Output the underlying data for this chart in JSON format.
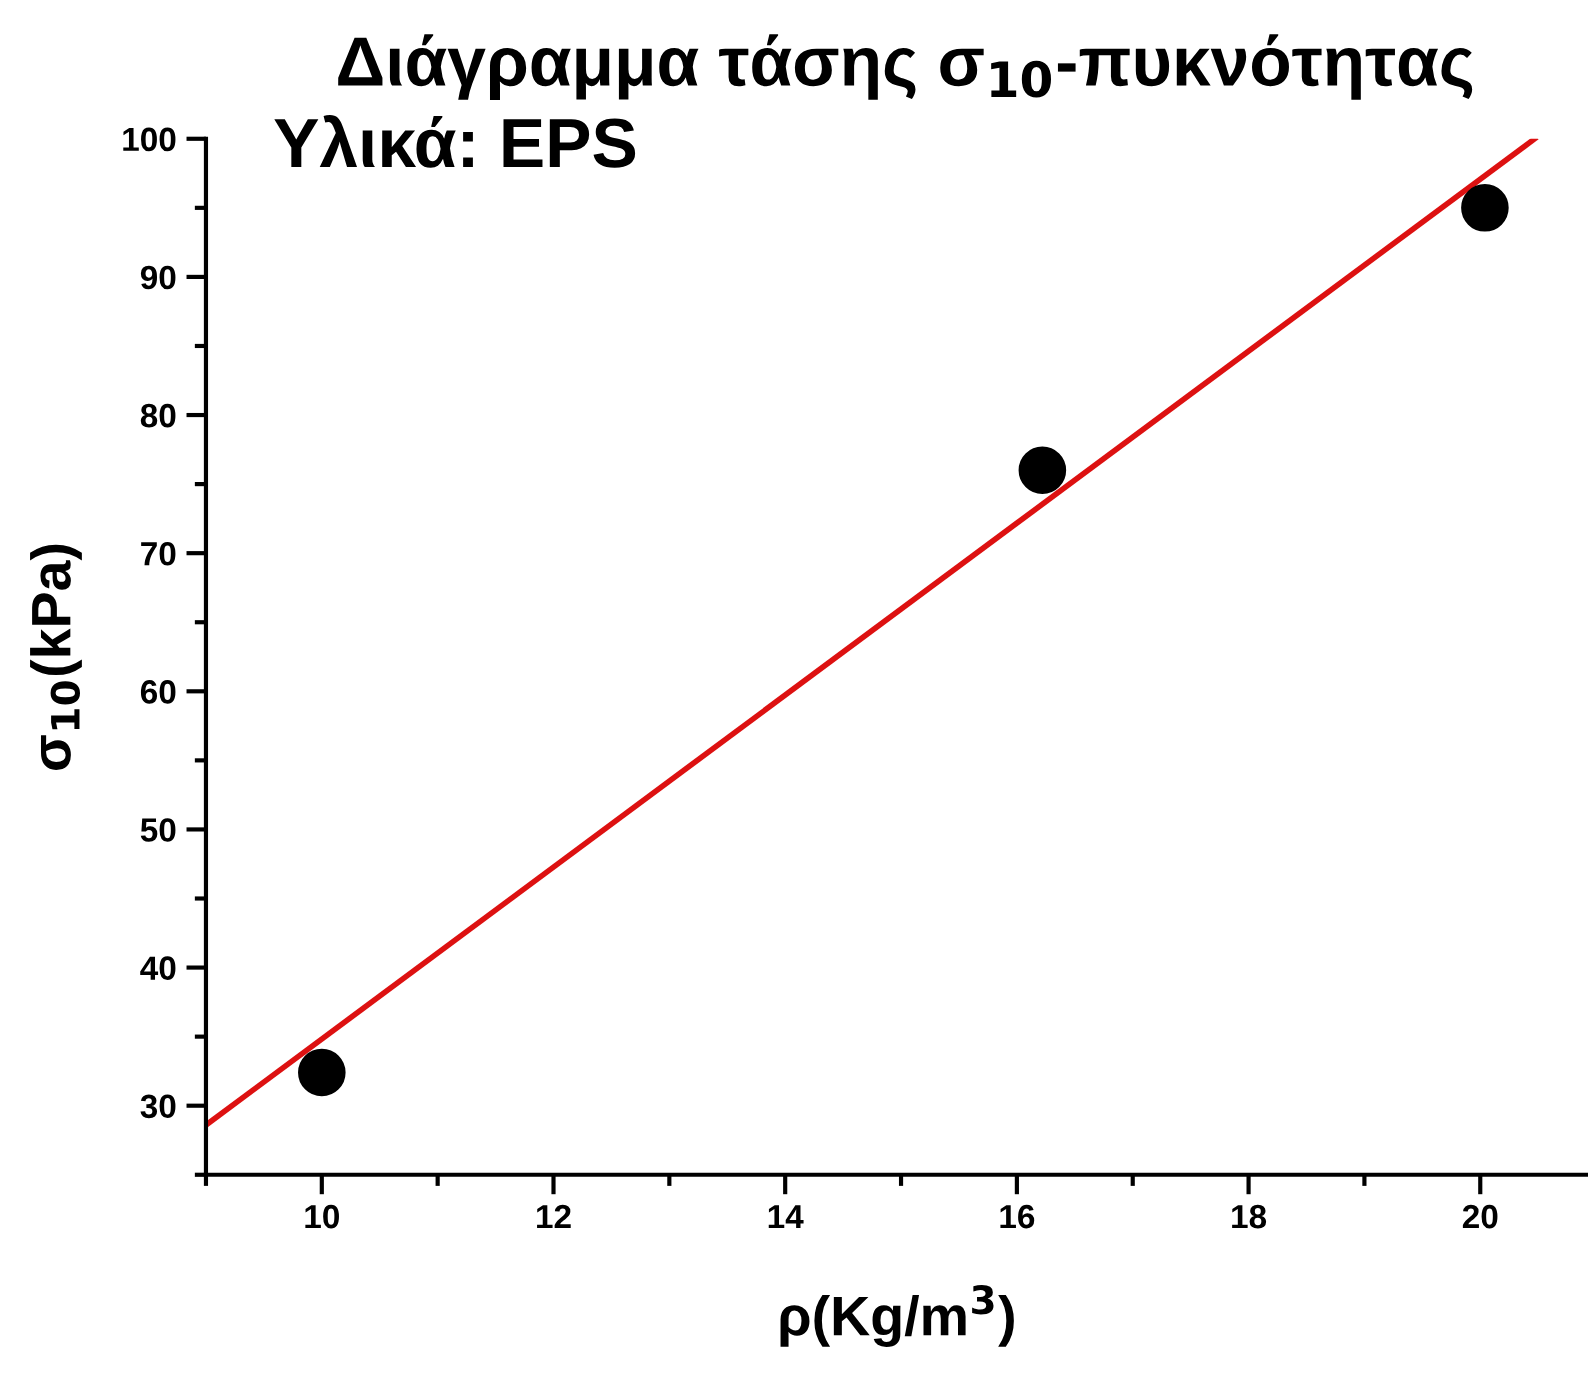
{
  "chart_data": {
    "type": "scatter",
    "title": "Διάγραμμα τάσης σ$_{10}$-πυκνότητας",
    "subtitle": "Υλικά: EPS",
    "xlabel": "ρ(Kg/m$^{3}$)",
    "ylabel": "σ$_{10}$(kPa)",
    "series": [
      {
        "color": "#000000",
        "marker": "circle",
        "x": [
          10,
          16.22,
          20.04
        ],
        "values": [
          32.4,
          76.0,
          95.0
        ]
      },
      {
        "type": "line",
        "color": "#dd1111",
        "marker": "none",
        "line_style": "solid",
        "x": [
          9,
          20.47
        ],
        "values": [
          28.6,
          100
        ]
      }
    ],
    "xlim": [
      9,
      20.93
    ],
    "ylim": [
      25,
      100
    ],
    "xticks": [
      {
        "value": 9,
        "label": null
      },
      10,
      {
        "value": 11,
        "label": null
      },
      12,
      {
        "value": 13,
        "label": null
      },
      14,
      {
        "value": 15,
        "label": null
      },
      16,
      {
        "value": 17,
        "label": null
      },
      18,
      {
        "value": 19,
        "label": null
      },
      20
    ],
    "yticks": [
      {
        "value": 25,
        "label": null
      },
      30,
      {
        "value": 35,
        "label": null
      },
      40,
      {
        "value": 45,
        "label": null
      },
      50,
      {
        "value": 55,
        "label": null
      },
      60,
      {
        "value": 65,
        "label": null
      },
      70,
      {
        "value": 75,
        "label": null
      },
      80,
      {
        "value": 85,
        "label": null
      },
      90,
      {
        "value": 95,
        "label": null
      },
      100
    ],
    "grid": false,
    "legend": false
  }
}
